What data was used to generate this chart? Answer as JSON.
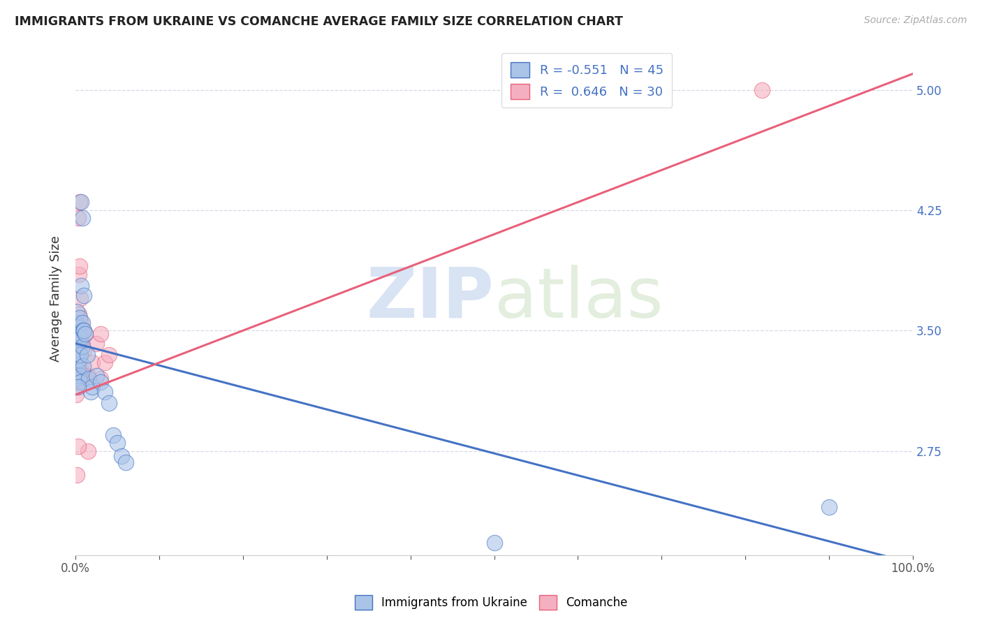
{
  "title": "IMMIGRANTS FROM UKRAINE VS COMANCHE AVERAGE FAMILY SIZE CORRELATION CHART",
  "source": "Source: ZipAtlas.com",
  "ylabel": "Average Family Size",
  "ukraine_scatter": [
    [
      0.001,
      3.55
    ],
    [
      0.001,
      3.48
    ],
    [
      0.002,
      3.62
    ],
    [
      0.002,
      3.5
    ],
    [
      0.002,
      3.38
    ],
    [
      0.003,
      3.42
    ],
    [
      0.003,
      3.3
    ],
    [
      0.003,
      3.25
    ],
    [
      0.003,
      3.2
    ],
    [
      0.004,
      3.52
    ],
    [
      0.004,
      3.45
    ],
    [
      0.004,
      3.38
    ],
    [
      0.004,
      3.32
    ],
    [
      0.005,
      3.58
    ],
    [
      0.005,
      3.48
    ],
    [
      0.005,
      3.35
    ],
    [
      0.005,
      3.22
    ],
    [
      0.006,
      3.45
    ],
    [
      0.006,
      3.35
    ],
    [
      0.006,
      3.18
    ],
    [
      0.007,
      4.3
    ],
    [
      0.007,
      3.78
    ],
    [
      0.008,
      4.2
    ],
    [
      0.008,
      3.55
    ],
    [
      0.008,
      3.4
    ],
    [
      0.009,
      3.5
    ],
    [
      0.009,
      3.28
    ],
    [
      0.01,
      3.72
    ],
    [
      0.01,
      3.5
    ],
    [
      0.012,
      3.48
    ],
    [
      0.014,
      3.35
    ],
    [
      0.016,
      3.2
    ],
    [
      0.018,
      3.12
    ],
    [
      0.02,
      3.15
    ],
    [
      0.025,
      3.22
    ],
    [
      0.03,
      3.18
    ],
    [
      0.035,
      3.12
    ],
    [
      0.04,
      3.05
    ],
    [
      0.045,
      2.85
    ],
    [
      0.05,
      2.8
    ],
    [
      0.055,
      2.72
    ],
    [
      0.06,
      2.68
    ],
    [
      0.5,
      2.18
    ],
    [
      0.9,
      2.4
    ],
    [
      0.003,
      3.15
    ]
  ],
  "comanche_scatter": [
    [
      0.001,
      3.22
    ],
    [
      0.002,
      3.18
    ],
    [
      0.002,
      3.5
    ],
    [
      0.003,
      3.45
    ],
    [
      0.003,
      4.2
    ],
    [
      0.004,
      3.85
    ],
    [
      0.004,
      3.6
    ],
    [
      0.005,
      4.3
    ],
    [
      0.005,
      3.35
    ],
    [
      0.005,
      3.9
    ],
    [
      0.006,
      3.7
    ],
    [
      0.006,
      3.28
    ],
    [
      0.007,
      3.55
    ],
    [
      0.008,
      3.42
    ],
    [
      0.009,
      3.48
    ],
    [
      0.01,
      3.38
    ],
    [
      0.01,
      3.22
    ],
    [
      0.012,
      3.48
    ],
    [
      0.015,
      3.22
    ],
    [
      0.015,
      2.75
    ],
    [
      0.02,
      3.3
    ],
    [
      0.025,
      3.42
    ],
    [
      0.03,
      3.48
    ],
    [
      0.03,
      3.2
    ],
    [
      0.035,
      3.3
    ],
    [
      0.04,
      3.35
    ],
    [
      0.001,
      3.1
    ],
    [
      0.003,
      2.78
    ],
    [
      0.002,
      2.6
    ],
    [
      0.82,
      5.0
    ]
  ],
  "ukraine_R": -0.551,
  "ukraine_N": 45,
  "comanche_R": 0.646,
  "comanche_N": 30,
  "ukraine_color": "#aac4e8",
  "comanche_color": "#f5b0c0",
  "ukraine_line_color": "#4472c4",
  "comanche_line_color": "#e8607a",
  "ukraine_line": [
    [
      0.0,
      3.42
    ],
    [
      1.0,
      2.05
    ]
  ],
  "comanche_line": [
    [
      0.0,
      3.1
    ],
    [
      1.0,
      5.1
    ]
  ],
  "xlim": [
    0.0,
    1.0
  ],
  "ylim": [
    2.1,
    5.3
  ],
  "yticks": [
    2.75,
    3.5,
    4.25,
    5.0
  ],
  "xticks": [
    0.0,
    0.1,
    0.2,
    0.3,
    0.4,
    0.5,
    0.6,
    0.7,
    0.8,
    0.9,
    1.0
  ],
  "xticklabels_show": [
    "0.0%",
    "",
    "",
    "",
    "",
    "",
    "",
    "",
    "",
    "",
    "100.0%"
  ],
  "yticklabels_right": [
    "2.75",
    "3.50",
    "4.25",
    "5.00"
  ],
  "watermark_zip": "ZIP",
  "watermark_atlas": "atlas",
  "background_color": "#ffffff",
  "grid_color": "#d8d8e8"
}
